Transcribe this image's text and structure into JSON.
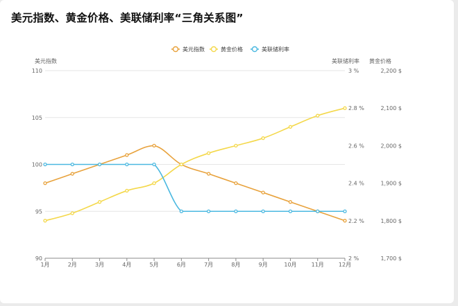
{
  "title": "美元指数、黄金价格、美联储利率“三角关系图”",
  "chart_data": {
    "type": "line",
    "categories": [
      "1月",
      "2月",
      "3月",
      "4月",
      "5月",
      "6月",
      "7月",
      "8月",
      "9月",
      "10月",
      "11月",
      "12月"
    ],
    "series": [
      {
        "name": "美元指数",
        "axis": "left",
        "color": "#e8a23c",
        "values": [
          98,
          99,
          100,
          101,
          102,
          100,
          99,
          98,
          97,
          96,
          95,
          94
        ]
      },
      {
        "name": "黄金价格",
        "axis": "right2",
        "color": "#f4d84a",
        "values": [
          1800,
          1820,
          1850,
          1880,
          1900,
          1950,
          1980,
          2000,
          2020,
          2050,
          2080,
          2100
        ]
      },
      {
        "name": "美联储利率",
        "axis": "right1",
        "color": "#4ab8e0",
        "values": [
          2.5,
          2.5,
          2.5,
          2.5,
          2.5,
          2.25,
          2.25,
          2.25,
          2.25,
          2.25,
          2.25,
          2.25
        ]
      }
    ],
    "axes": {
      "left": {
        "name": "美元指数",
        "min": 90,
        "max": 110,
        "ticks": [
          90,
          95,
          100,
          105,
          110
        ],
        "labels": [
          "90",
          "95",
          "100",
          "105",
          "110"
        ]
      },
      "right1": {
        "name": "美联储利率",
        "min": 2,
        "max": 3,
        "ticks": [
          2,
          2.2,
          2.4,
          2.6,
          2.8,
          3
        ],
        "labels": [
          "2 %",
          "2.2 %",
          "2.4 %",
          "2.6 %",
          "2.8 %",
          "3 %"
        ]
      },
      "right2": {
        "name": "黄金价格",
        "min": 1700,
        "max": 2200,
        "ticks": [
          1700,
          1800,
          1900,
          2000,
          2100,
          2200
        ],
        "labels": [
          "1,700 $",
          "1,800 $",
          "1,900 $",
          "2,000 $",
          "2,100 $",
          "2,200 $"
        ]
      }
    },
    "legend": {
      "position": "top-center",
      "items": [
        "美元指数",
        "黄金价格",
        "美联储利率"
      ]
    },
    "grid": true
  }
}
